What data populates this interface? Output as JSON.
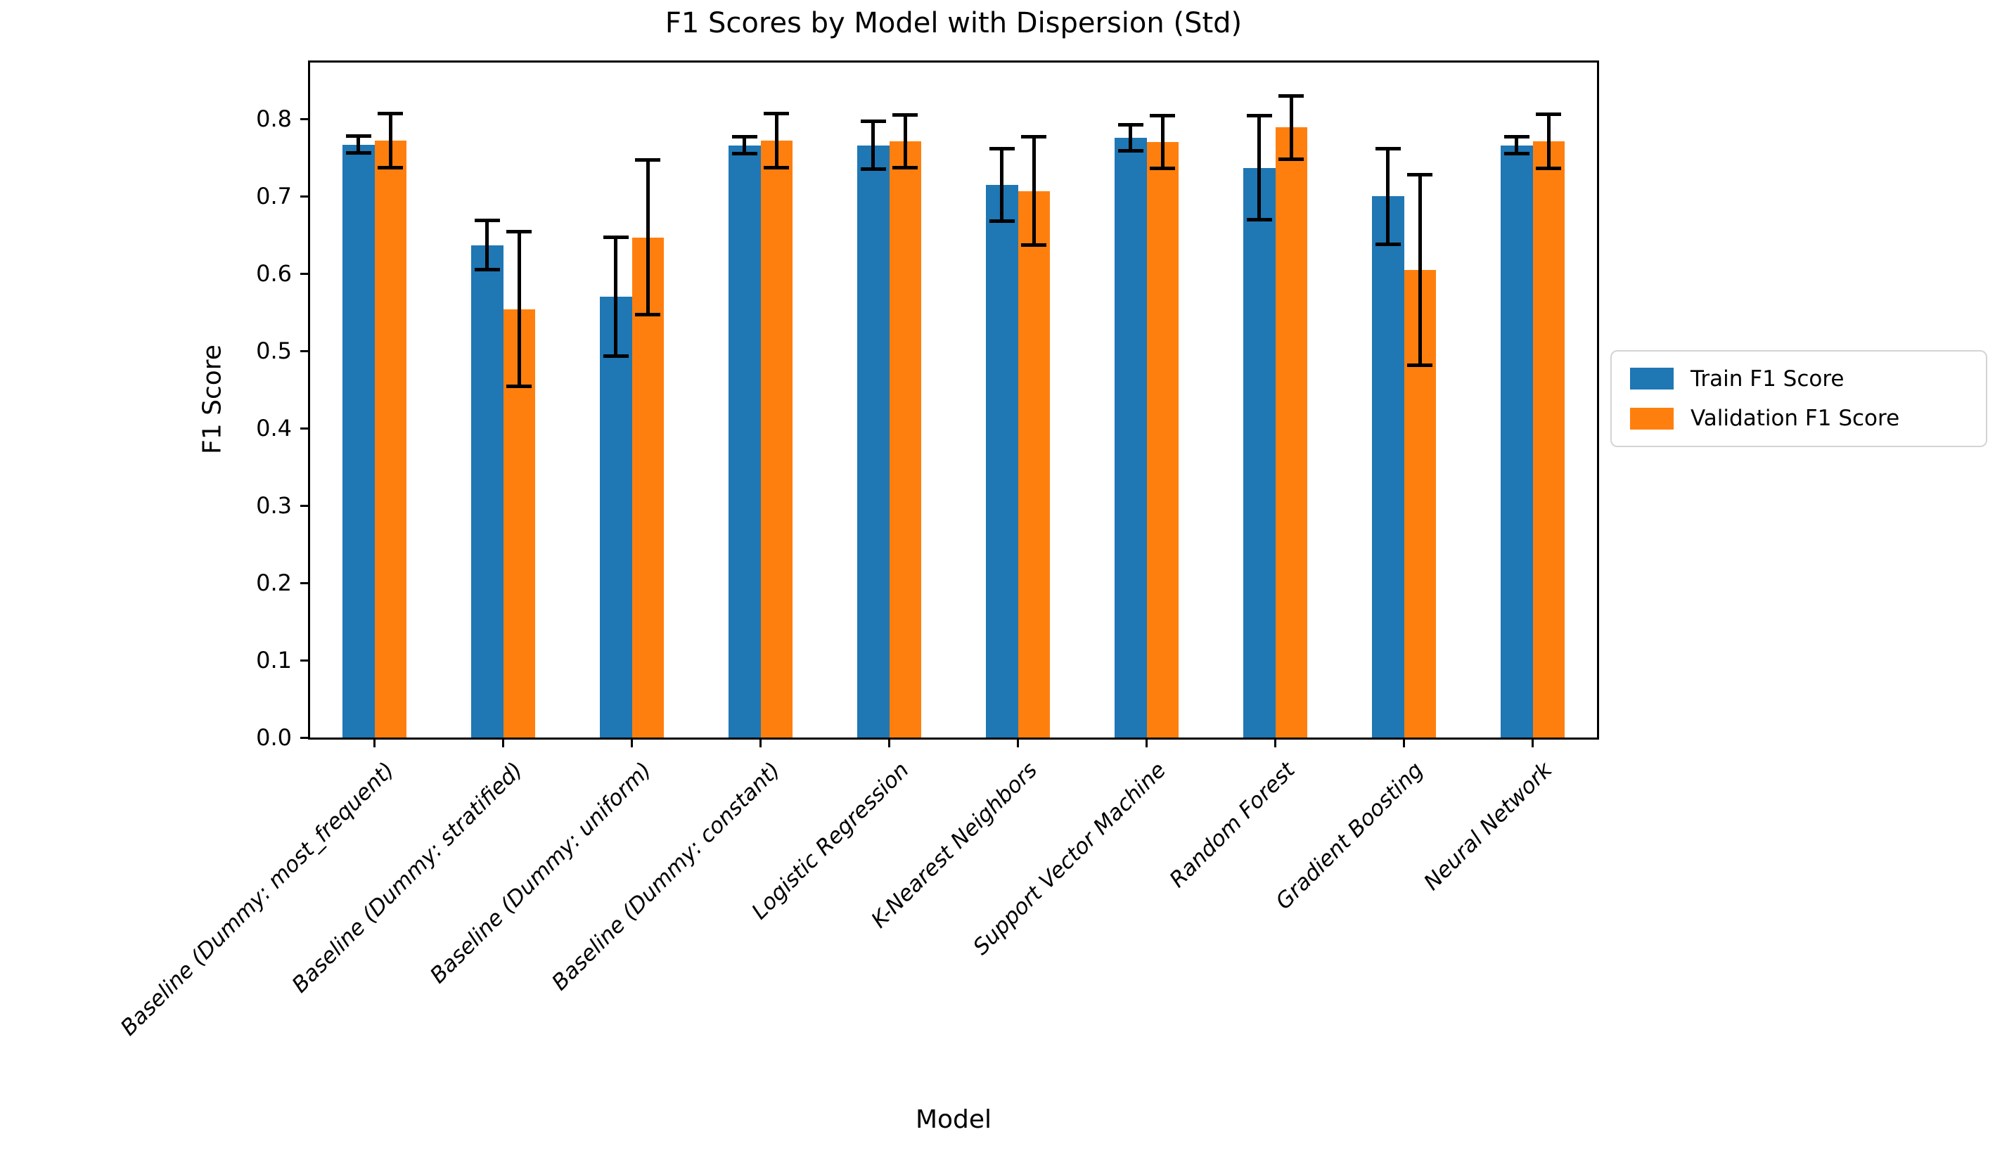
{
  "chart_data": {
    "type": "bar",
    "title": "F1 Scores by Model with Dispersion (Std)",
    "xlabel": "Model",
    "ylabel": "F1 Score",
    "ylim": [
      0,
      0.873
    ],
    "y_ticks": [
      0.0,
      0.1,
      0.2,
      0.3,
      0.4,
      0.5,
      0.6,
      0.7,
      0.8
    ],
    "grid": false,
    "legend_position": "outside-right",
    "error_bar_color": "#000000",
    "categories": [
      "Baseline (Dummy: most_frequent)",
      "Baseline (Dummy: stratified)",
      "Baseline (Dummy: uniform)",
      "Baseline (Dummy: constant)",
      "Logistic Regression",
      "K-Nearest Neighbors",
      "Support Vector Machine",
      "Random Forest",
      "Gradient Boosting",
      "Neural Network"
    ],
    "series": [
      {
        "name": "Train F1 Score",
        "color": "#1f77b4",
        "values": [
          0.767,
          0.637,
          0.57,
          0.766,
          0.766,
          0.715,
          0.776,
          0.737,
          0.7,
          0.766
        ],
        "errors": [
          0.011,
          0.032,
          0.077,
          0.011,
          0.031,
          0.047,
          0.017,
          0.067,
          0.062,
          0.011
        ]
      },
      {
        "name": "Validation F1 Score",
        "color": "#ff7f0e",
        "values": [
          0.772,
          0.554,
          0.647,
          0.772,
          0.771,
          0.707,
          0.77,
          0.789,
          0.605,
          0.771
        ],
        "errors": [
          0.035,
          0.1,
          0.1,
          0.035,
          0.034,
          0.07,
          0.034,
          0.041,
          0.123,
          0.035
        ]
      }
    ]
  }
}
